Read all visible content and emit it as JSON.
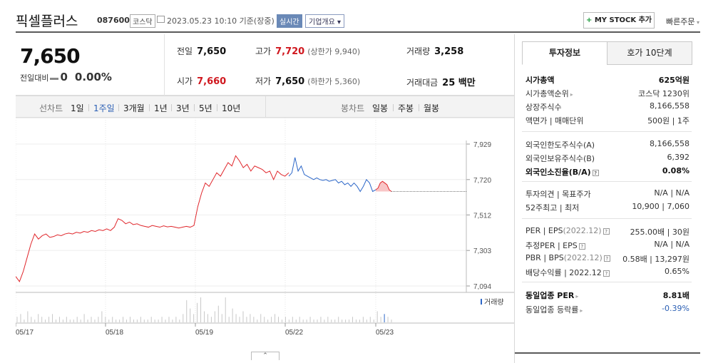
{
  "header": {
    "name": "픽셀플러스",
    "code": "087600",
    "market": "코스닥",
    "datetime": "2023.05.23 10:10  기준(장중)",
    "realtime": "실시간",
    "company_info": "기업개요",
    "mystock_plus": "+",
    "mystock": "MY STOCK 추가",
    "quick_order": "빠른주문"
  },
  "summary": {
    "price": "7,650",
    "change_label": "전일대비",
    "change_value": "0",
    "change_pct": "0.00%",
    "prev_label": "전일",
    "prev": "7,650",
    "high_label": "고가",
    "high": "7,720",
    "upper_limit": "(상한가 9,940)",
    "volume_label": "거래량",
    "volume": "3,258",
    "open_label": "시가",
    "open": "7,660",
    "low_label": "저가",
    "low": "7,650",
    "lower_limit": "(하한가 5,360)",
    "amount_label": "거래대금",
    "amount": "25 백만"
  },
  "tabs": {
    "line_label": "선차트",
    "periods": [
      "1일",
      "1주일",
      "3개월",
      "1년",
      "3년",
      "5년",
      "10년"
    ],
    "active_period": "1주일",
    "candle_label": "봉차트",
    "candles": [
      "일봉",
      "주봉",
      "월봉"
    ]
  },
  "chart_data": {
    "type": "line",
    "y_ticks": [
      "7,929",
      "7,720",
      "7,512",
      "7,303",
      "7,094"
    ],
    "ylim": [
      7094,
      7929
    ],
    "x_ticks": [
      "05/17",
      "05/18",
      "05/19",
      "05/22",
      "05/23"
    ],
    "volume_label": "거래량",
    "prev_close": 7650,
    "colors": {
      "up": "#e0262b",
      "down": "#2b66c8",
      "fill": "#f6b6b8"
    },
    "series": [
      {
        "values": [
          7150,
          7120,
          7180,
          7260,
          7340,
          7400,
          7370,
          7390,
          7400,
          7380,
          7385,
          7395,
          7390,
          7400,
          7405,
          7400,
          7410,
          7405,
          7415,
          7410,
          7420,
          7415,
          7425,
          7420,
          7430,
          7420,
          7440,
          7490,
          7480,
          7460,
          7470,
          7455,
          7460,
          7450,
          7445,
          7440,
          7450,
          7445,
          7440,
          7448,
          7442,
          7445,
          7440,
          7435,
          7440,
          7445,
          7440,
          7450,
          7560,
          7640,
          7700,
          7680,
          7720,
          7760,
          7740,
          7780,
          7820,
          7800,
          7860,
          7830,
          7790,
          7810,
          7770,
          7800,
          7790,
          7780,
          7760,
          7770,
          7720,
          7770,
          7750,
          7740,
          7760
        ]
      },
      {
        "values": [
          7740,
          7760,
          7850,
          7770,
          7800,
          7750,
          7740,
          7730,
          7720,
          7730,
          7720,
          7715,
          7720,
          7710,
          7715,
          7720,
          7700,
          7710,
          7690,
          7700,
          7680,
          7700,
          7680,
          7650,
          7680,
          7720,
          7700,
          7650,
          7660
        ]
      },
      {
        "values": [
          7660,
          7670,
          7700,
          7710,
          7700,
          7690,
          7660,
          7650
        ]
      }
    ],
    "volumes": [
      2,
      3,
      1,
      4,
      2,
      1,
      3,
      2,
      1,
      2,
      3,
      1,
      2,
      1,
      2,
      1,
      1,
      2,
      1,
      3,
      1,
      2,
      1,
      2,
      4,
      2,
      1,
      2,
      1,
      1,
      2,
      1,
      2,
      1,
      1,
      2,
      1,
      1,
      2,
      1,
      1,
      2,
      1,
      2,
      1,
      2,
      1,
      3,
      8,
      5,
      3,
      7,
      9,
      4,
      3,
      2,
      4,
      6,
      3,
      9,
      2,
      5,
      3,
      2,
      4,
      2,
      3,
      2,
      1,
      3,
      2,
      1,
      2,
      3,
      2,
      1,
      2,
      1,
      2,
      1,
      2,
      1,
      1,
      2,
      1,
      1,
      2,
      1,
      2,
      1,
      1,
      2,
      1,
      1,
      1,
      2,
      1,
      1,
      2,
      1,
      2,
      1,
      4,
      2,
      3,
      2,
      1
    ]
  },
  "right_panel": {
    "tabs": [
      "투자정보",
      "호가 10단계"
    ],
    "rows": [
      {
        "label": "시가총액",
        "value": "625억원",
        "bold": true
      },
      {
        "label": "시가총액순위",
        "value": "코스닥 1230위",
        "arrow": true
      },
      {
        "label": "상장주식수",
        "value": "8,166,558"
      },
      {
        "label": "액면가 | 매매단위",
        "value": "500원 | 1주"
      },
      {
        "label": "외국인한도주식수(A)",
        "value": "8,166,558"
      },
      {
        "label": "외국인보유주식수(B)",
        "value": "6,392"
      },
      {
        "label": "외국인소진율(B/A)",
        "value": "0.08%",
        "bold": true,
        "q": true
      },
      {
        "label": "투자의견 | 목표주가",
        "value": "N/A | N/A"
      },
      {
        "label": "52주최고 | 최저",
        "value": "10,900 | 7,060"
      },
      {
        "label": "PER | EPS",
        "note": "(2022.12)",
        "value": "255.00배 | 30원",
        "q": true
      },
      {
        "label": "추정PER | EPS",
        "value": "N/A | N/A",
        "q": true
      },
      {
        "label": "PBR | BPS",
        "note": "(2022.12)",
        "value": "0.58배 | 13,297원",
        "q": true
      },
      {
        "label": "배당수익률 | 2022.12",
        "value": "0.65%",
        "q": true
      },
      {
        "label": "동일업종 PER",
        "value": "8.81배",
        "bold": true,
        "arrow": true
      },
      {
        "label": "동일업종 등락률",
        "value": "-0.39%",
        "blue": true,
        "arrow": true
      }
    ]
  },
  "collapse_label": "⌃"
}
